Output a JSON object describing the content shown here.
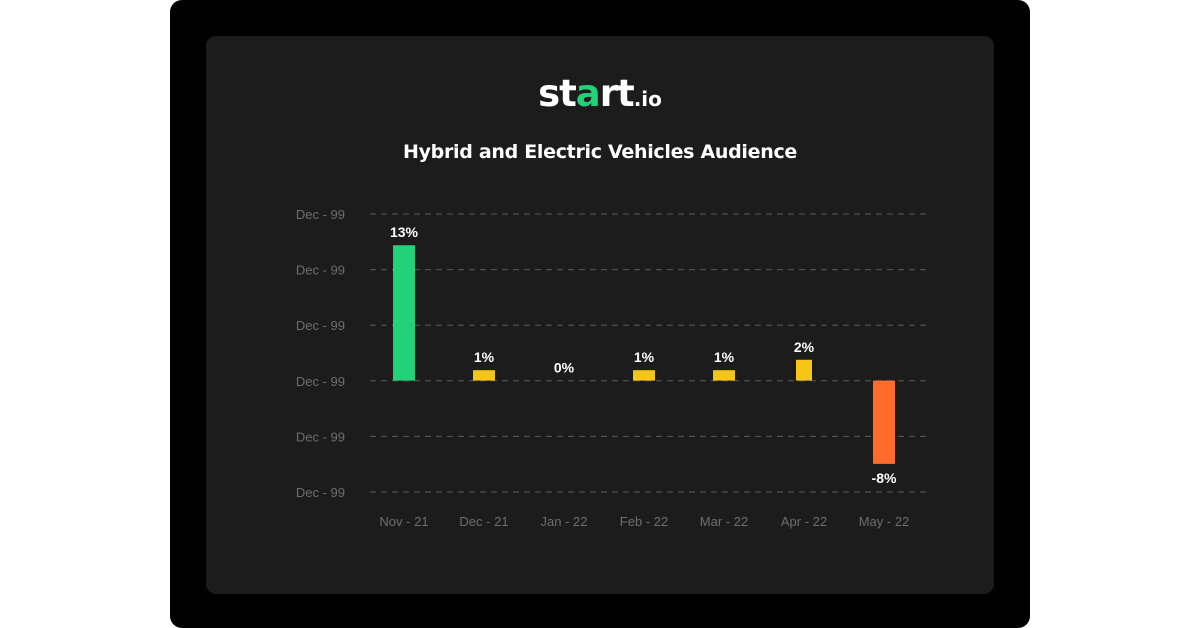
{
  "logo": {
    "part1": "st",
    "accent": "a",
    "part2": "rt",
    "suffix": ".io"
  },
  "colors": {
    "background": "#000000",
    "panel": "#1c1c1c",
    "positive_large": "#22d17a",
    "positive": "#f5c518",
    "negative": "#ff6b2b",
    "text": "#ffffff",
    "axis_text": "#6e6e6e",
    "grid": "#5a5a5a"
  },
  "chart_data": {
    "type": "bar",
    "title": "Hybrid and Electric Vehicles Audience",
    "categories": [
      "Nov - 21",
      "Dec - 21",
      "Jan - 22",
      "Feb - 22",
      "Mar - 22",
      "Apr - 22",
      "May - 22"
    ],
    "values": [
      13,
      1,
      0,
      1,
      1,
      2,
      -8
    ],
    "data_labels": [
      "13%",
      "1%",
      "0%",
      "1%",
      "1%",
      "2%",
      "-8%"
    ],
    "bar_colors": [
      "#22d17a",
      "#f5c518",
      "#f5c518",
      "#f5c518",
      "#f5c518",
      "#f5c518",
      "#ff6b2b"
    ],
    "y_tick_labels": [
      "Dec - 99",
      "Dec - 99",
      "Dec - 99",
      "Dec - 99",
      "Dec - 99",
      "Dec - 99"
    ],
    "ylim": [
      -10.7,
      16
    ],
    "grid": true,
    "grid_style": "dashed",
    "xlabel": "",
    "ylabel": ""
  }
}
